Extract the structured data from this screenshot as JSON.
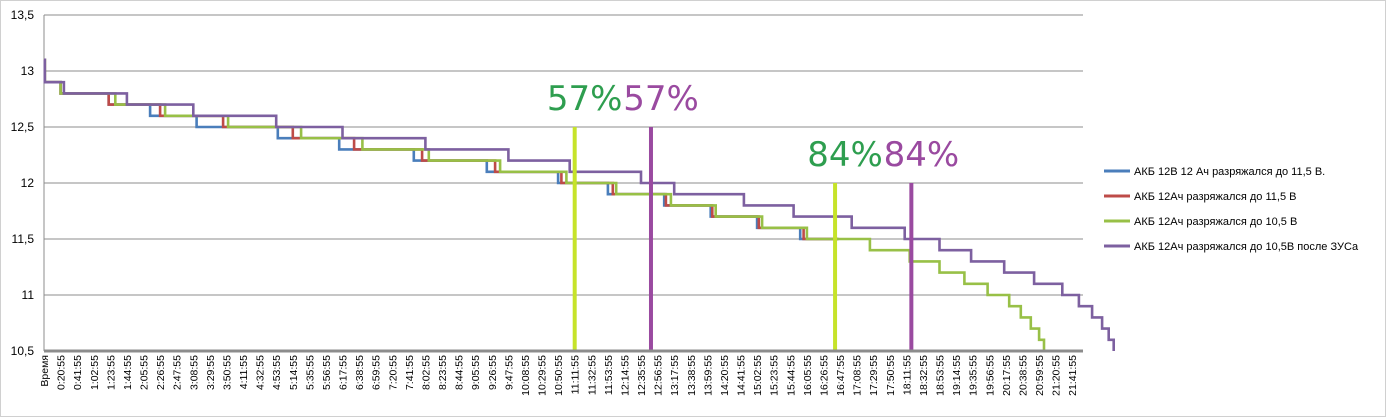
{
  "chart_data": {
    "type": "line",
    "title": "",
    "xlabel": "",
    "ylabel": "",
    "ylim": [
      10.5,
      13.5
    ],
    "yticks": [
      "10,5",
      "11",
      "11,5",
      "12",
      "12,5",
      "13",
      "13,5"
    ],
    "ytick_values": [
      10.5,
      11,
      11.5,
      12,
      12.5,
      13,
      13.5
    ],
    "x_categories": [
      "Время",
      "0:20:55",
      "0:41:55",
      "1:02:55",
      "1:23:55",
      "1:44:55",
      "2:05:55",
      "2:26:55",
      "2:47:55",
      "3:08:55",
      "3:29:55",
      "3:50:55",
      "4:11:55",
      "4:32:55",
      "4:53:55",
      "5:14:55",
      "5:35:55",
      "5:56:55",
      "6:17:55",
      "6:38:55",
      "6:59:55",
      "7:20:55",
      "7:41:55",
      "8:02:55",
      "8:23:55",
      "8:44:55",
      "9:05:55",
      "9:26:55",
      "9:47:55",
      "10:08:55",
      "10:29:55",
      "10:50:55",
      "11:11:55",
      "11:32:55",
      "11:53:55",
      "12:14:55",
      "12:35:55",
      "12:56:55",
      "13:17:55",
      "13:38:55",
      "13:59:55",
      "14:20:55",
      "14:41:55",
      "15:02:55",
      "15:23:55",
      "15:44:55",
      "16:05:55",
      "16:26:55",
      "16:47:55",
      "17:08:55",
      "17:29:55",
      "17:50:55",
      "18:11:55",
      "18:32:55",
      "18:53:55",
      "19:14:55",
      "19:35:55",
      "19:56:55",
      "20:17:55",
      "20:38:55",
      "20:59:55",
      "21:20:55",
      "21:41:55"
    ],
    "grid": true,
    "legend_position": "right",
    "series": [
      {
        "name": "АКБ 12В 12 Ач разряжался до 11,5 В.",
        "color": "#4a7ebb",
        "points": [
          [
            0,
            13.1
          ],
          [
            0.05,
            12.9
          ],
          [
            1.0,
            12.8
          ],
          [
            3.9,
            12.7
          ],
          [
            6.4,
            12.6
          ],
          [
            9.2,
            12.5
          ],
          [
            14.1,
            12.4
          ],
          [
            17.8,
            12.3
          ],
          [
            22.3,
            12.2
          ],
          [
            26.7,
            12.1
          ],
          [
            31.0,
            12.0
          ],
          [
            34.0,
            11.9
          ],
          [
            37.4,
            11.8
          ],
          [
            40.2,
            11.7
          ],
          [
            43.0,
            11.6
          ],
          [
            45.6,
            11.5
          ],
          [
            47.9,
            11.5
          ]
        ]
      },
      {
        "name": "АКБ 12Ач разряжался до 11,5 В",
        "color": "#be4b48",
        "points": [
          [
            0,
            13.1
          ],
          [
            0.05,
            12.9
          ],
          [
            1.0,
            12.8
          ],
          [
            3.9,
            12.7
          ],
          [
            7.0,
            12.6
          ],
          [
            10.8,
            12.5
          ],
          [
            15.0,
            12.4
          ],
          [
            18.7,
            12.3
          ],
          [
            22.8,
            12.2
          ],
          [
            27.2,
            12.1
          ],
          [
            31.2,
            12.0
          ],
          [
            34.3,
            11.9
          ],
          [
            37.5,
            11.8
          ],
          [
            40.3,
            11.7
          ],
          [
            43.1,
            11.6
          ],
          [
            45.8,
            11.5
          ],
          [
            47.9,
            11.5
          ]
        ]
      },
      {
        "name": "АКБ 12Ач разряжался до 10,5 В",
        "color": "#98c047",
        "points": [
          [
            0,
            13.1
          ],
          [
            0.05,
            12.9
          ],
          [
            1.0,
            12.8
          ],
          [
            4.3,
            12.7
          ],
          [
            7.3,
            12.6
          ],
          [
            11.1,
            12.5
          ],
          [
            15.5,
            12.4
          ],
          [
            19.2,
            12.3
          ],
          [
            23.2,
            12.2
          ],
          [
            27.5,
            12.1
          ],
          [
            31.5,
            12.0
          ],
          [
            34.5,
            11.9
          ],
          [
            37.8,
            11.8
          ],
          [
            40.5,
            11.7
          ],
          [
            43.3,
            11.6
          ],
          [
            46.0,
            11.5
          ],
          [
            49.8,
            11.4
          ],
          [
            52.2,
            11.3
          ],
          [
            54.0,
            11.2
          ],
          [
            55.5,
            11.1
          ],
          [
            56.9,
            11.0
          ],
          [
            58.2,
            10.9
          ],
          [
            58.9,
            10.8
          ],
          [
            59.5,
            10.7
          ],
          [
            60.0,
            10.6
          ],
          [
            60.3,
            10.5
          ]
        ]
      },
      {
        "name": "АКБ 12Ач разряжался до 10,5В после ЗУСа",
        "color": "#7d60a0",
        "points": [
          [
            0,
            13.1
          ],
          [
            0.05,
            12.9
          ],
          [
            1.2,
            12.8
          ],
          [
            5.0,
            12.7
          ],
          [
            9.0,
            12.6
          ],
          [
            14.0,
            12.5
          ],
          [
            18.0,
            12.4
          ],
          [
            23.0,
            12.3
          ],
          [
            28.0,
            12.2
          ],
          [
            31.7,
            12.1
          ],
          [
            36.0,
            12.0
          ],
          [
            38.0,
            11.9
          ],
          [
            42.2,
            11.8
          ],
          [
            45.2,
            11.7
          ],
          [
            48.7,
            11.6
          ],
          [
            51.9,
            11.5
          ],
          [
            54.0,
            11.4
          ],
          [
            55.9,
            11.3
          ],
          [
            57.9,
            11.2
          ],
          [
            59.7,
            11.1
          ],
          [
            61.4,
            11.0
          ],
          [
            62.4,
            10.9
          ],
          [
            63.2,
            10.8
          ],
          [
            63.8,
            10.7
          ],
          [
            64.2,
            10.6
          ],
          [
            64.5,
            10.5
          ]
        ]
      }
    ],
    "markers": [
      {
        "label": "57%",
        "x": 32.0,
        "y_top": 12.5,
        "color": "#c6e32a",
        "text_color": "#2e9e4f"
      },
      {
        "label": "57%",
        "x": 36.6,
        "y_top": 12.5,
        "color": "#9a4aa0",
        "text_color": "#9a4aa0"
      },
      {
        "label": "84%",
        "x": 47.7,
        "y_top": 12.0,
        "color": "#c6e32a",
        "text_color": "#2e9e4f"
      },
      {
        "label": "84%",
        "x": 52.3,
        "y_top": 12.0,
        "color": "#9a4aa0",
        "text_color": "#9a4aa0"
      }
    ]
  }
}
